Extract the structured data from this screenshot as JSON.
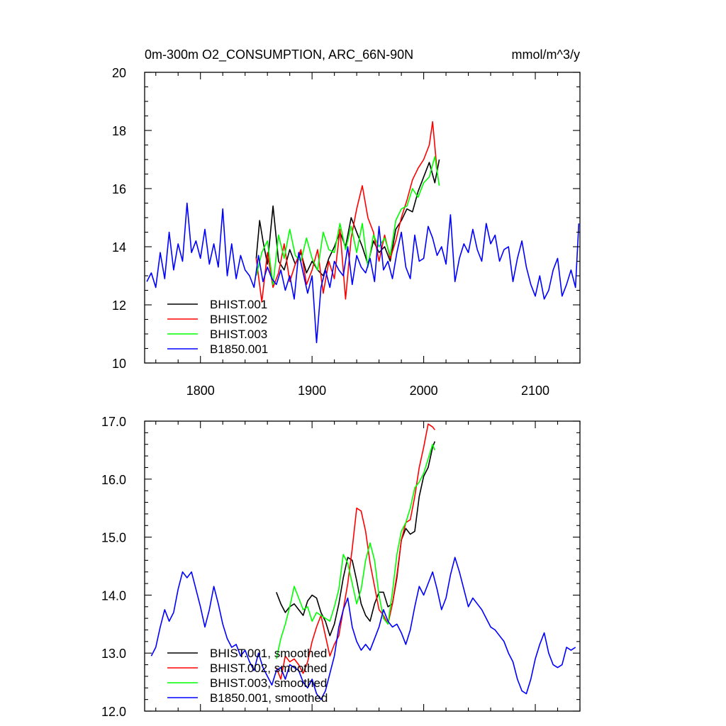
{
  "header": {
    "left": "0m-300m O2_CONSUMPTION, ARC_66N-90N",
    "right": "mmol/m^3/y"
  },
  "chart_data": [
    {
      "type": "line",
      "xlim": [
        1750,
        2140
      ],
      "ylim": [
        10,
        20
      ],
      "xticks": [
        1800,
        1900,
        2000,
        2100
      ],
      "xtick_labels": [
        "1800",
        "1900",
        "2000",
        "2100"
      ],
      "yticks": [
        10,
        12,
        14,
        16,
        18,
        20
      ],
      "ytick_labels": [
        "10",
        "12",
        "14",
        "16",
        "18",
        "20"
      ],
      "series": [
        {
          "name": "BHIST.001",
          "color": "#000000",
          "x": [
            1850,
            1853,
            1856,
            1860,
            1865,
            1870,
            1875,
            1880,
            1885,
            1890,
            1895,
            1900,
            1905,
            1910,
            1915,
            1920,
            1925,
            1930,
            1935,
            1940,
            1945,
            1950,
            1955,
            1960,
            1965,
            1970,
            1975,
            1980,
            1985,
            1990,
            1995,
            2000,
            2005,
            2010,
            2014
          ],
          "y": [
            13.6,
            14.9,
            14.2,
            13.4,
            15.4,
            13.5,
            13.2,
            13.9,
            13.4,
            13.8,
            13.1,
            13.5,
            13.2,
            13.0,
            13.6,
            14.0,
            14.5,
            14.0,
            15.0,
            14.5,
            14.0,
            13.4,
            14.2,
            13.8,
            14.0,
            13.5,
            14.6,
            14.9,
            15.3,
            15.2,
            15.9,
            16.4,
            16.9,
            16.2,
            17.0
          ]
        },
        {
          "name": "BHIST.002",
          "color": "#ff0000",
          "x": [
            1850,
            1855,
            1860,
            1865,
            1870,
            1875,
            1880,
            1885,
            1890,
            1895,
            1900,
            1905,
            1910,
            1915,
            1920,
            1925,
            1930,
            1935,
            1940,
            1945,
            1950,
            1955,
            1960,
            1965,
            1970,
            1975,
            1980,
            1985,
            1990,
            1995,
            2000,
            2005,
            2008,
            2012
          ],
          "y": [
            13.6,
            12.1,
            13.8,
            12.6,
            13.1,
            14.1,
            12.8,
            13.4,
            13.9,
            12.7,
            13.2,
            13.9,
            12.4,
            13.5,
            12.9,
            14.6,
            12.2,
            14.3,
            15.3,
            16.1,
            15.0,
            14.5,
            13.5,
            14.4,
            13.6,
            14.2,
            15.0,
            15.6,
            16.3,
            16.7,
            17.0,
            17.5,
            18.3,
            16.6
          ]
        },
        {
          "name": "BHIST.003",
          "color": "#00ff00",
          "x": [
            1850,
            1855,
            1860,
            1865,
            1870,
            1875,
            1880,
            1885,
            1890,
            1895,
            1900,
            1905,
            1910,
            1915,
            1920,
            1925,
            1930,
            1935,
            1940,
            1945,
            1950,
            1955,
            1960,
            1965,
            1970,
            1975,
            1980,
            1985,
            1990,
            1995,
            2000,
            2005,
            2010,
            2014
          ],
          "y": [
            13.0,
            13.8,
            14.2,
            12.7,
            14.4,
            13.6,
            14.6,
            13.7,
            13.5,
            14.3,
            13.6,
            13.2,
            14.5,
            13.9,
            13.8,
            14.8,
            13.9,
            14.7,
            13.8,
            14.8,
            13.3,
            14.4,
            14.0,
            14.3,
            13.7,
            14.9,
            15.3,
            15.4,
            16.0,
            15.7,
            16.2,
            16.4,
            17.1,
            16.1
          ]
        },
        {
          "name": "B1850.001",
          "color": "#0000ff",
          "x": [
            1752,
            1756,
            1760,
            1764,
            1768,
            1772,
            1776,
            1780,
            1784,
            1788,
            1792,
            1796,
            1800,
            1804,
            1808,
            1812,
            1816,
            1820,
            1824,
            1828,
            1832,
            1836,
            1840,
            1844,
            1848,
            1852,
            1856,
            1860,
            1864,
            1868,
            1872,
            1876,
            1880,
            1884,
            1888,
            1892,
            1896,
            1900,
            1904,
            1908,
            1912,
            1916,
            1920,
            1924,
            1928,
            1932,
            1936,
            1940,
            1944,
            1948,
            1952,
            1956,
            1960,
            1964,
            1968,
            1972,
            1976,
            1980,
            1984,
            1988,
            1992,
            1996,
            2000,
            2004,
            2008,
            2012,
            2016,
            2020,
            2024,
            2028,
            2032,
            2036,
            2040,
            2044,
            2048,
            2052,
            2056,
            2060,
            2064,
            2068,
            2072,
            2076,
            2080,
            2084,
            2088,
            2092,
            2096,
            2100,
            2104,
            2108,
            2112,
            2116,
            2120,
            2124,
            2128,
            2132,
            2136,
            2139
          ],
          "y": [
            12.8,
            13.1,
            12.6,
            13.8,
            12.9,
            14.5,
            13.2,
            14.1,
            13.5,
            15.5,
            13.8,
            14.2,
            13.6,
            14.6,
            13.4,
            14.1,
            13.3,
            15.3,
            13.0,
            14.1,
            12.9,
            13.7,
            13.2,
            13.0,
            12.6,
            13.7,
            12.8,
            13.3,
            12.9,
            12.7,
            13.2,
            12.5,
            13.0,
            12.2,
            13.8,
            13.1,
            12.4,
            13.0,
            10.7,
            12.6,
            13.2,
            12.6,
            13.5,
            13.2,
            13.0,
            14.0,
            12.7,
            13.7,
            13.3,
            13.1,
            13.6,
            12.8,
            14.7,
            13.2,
            13.5,
            12.9,
            13.8,
            14.5,
            13.3,
            12.9,
            14.4,
            13.5,
            13.6,
            14.7,
            14.3,
            13.7,
            14.0,
            13.4,
            15.1,
            12.8,
            13.6,
            14.1,
            13.8,
            14.6,
            13.9,
            13.5,
            14.8,
            14.1,
            14.4,
            13.5,
            13.9,
            14.0,
            12.8,
            13.6,
            14.2,
            13.3,
            12.7,
            12.3,
            13.0,
            12.2,
            12.5,
            13.2,
            13.6,
            12.3,
            12.7,
            13.2,
            12.6,
            14.8
          ]
        }
      ],
      "legend_entries": [
        "BHIST.001",
        "BHIST.002",
        "BHIST.003",
        "B1850.001"
      ],
      "legend_position": "bottom-left"
    },
    {
      "type": "line",
      "xlim": [
        1750,
        2140
      ],
      "ylim": [
        12.0,
        17.0
      ],
      "yticks": [
        12.0,
        13.0,
        14.0,
        15.0,
        16.0,
        17.0
      ],
      "ytick_labels": [
        "12.0",
        "13.0",
        "14.0",
        "15.0",
        "16.0",
        "17.0"
      ],
      "series": [
        {
          "name": "BHIST.001, smoothed",
          "color": "#000000",
          "x": [
            1868,
            1872,
            1876,
            1880,
            1884,
            1888,
            1892,
            1896,
            1900,
            1904,
            1908,
            1912,
            1916,
            1920,
            1924,
            1928,
            1932,
            1936,
            1940,
            1944,
            1948,
            1952,
            1956,
            1960,
            1964,
            1968,
            1972,
            1976,
            1980,
            1984,
            1988,
            1992,
            1996,
            2000,
            2004,
            2008,
            2010
          ],
          "y": [
            14.05,
            13.85,
            13.7,
            13.8,
            13.85,
            13.75,
            13.65,
            13.9,
            14.0,
            13.95,
            13.7,
            13.55,
            13.3,
            13.5,
            13.85,
            14.3,
            14.65,
            14.6,
            14.25,
            13.85,
            13.65,
            13.55,
            13.85,
            14.05,
            14.05,
            13.8,
            13.85,
            14.3,
            14.95,
            15.15,
            15.05,
            15.1,
            15.7,
            16.05,
            16.2,
            16.55,
            16.65
          ]
        },
        {
          "name": "BHIST.002, smoothed",
          "color": "#ff0000",
          "x": [
            1868,
            1872,
            1876,
            1880,
            1884,
            1888,
            1892,
            1896,
            1900,
            1904,
            1908,
            1912,
            1916,
            1920,
            1924,
            1928,
            1932,
            1936,
            1940,
            1944,
            1948,
            1952,
            1956,
            1960,
            1964,
            1968,
            1972,
            1976,
            1980,
            1984,
            1988,
            1992,
            1996,
            2000,
            2004,
            2008,
            2010
          ],
          "y": [
            12.75,
            12.55,
            12.95,
            12.85,
            12.9,
            12.8,
            12.65,
            12.85,
            13.2,
            13.45,
            13.65,
            13.3,
            12.95,
            13.15,
            13.3,
            13.75,
            14.2,
            14.8,
            15.5,
            15.45,
            15.1,
            14.55,
            14.15,
            13.75,
            13.65,
            13.5,
            13.85,
            14.35,
            14.95,
            15.25,
            15.3,
            15.7,
            16.2,
            16.55,
            16.95,
            16.9,
            16.85
          ]
        },
        {
          "name": "BHIST.003, smoothed",
          "color": "#00ff00",
          "x": [
            1868,
            1872,
            1876,
            1880,
            1884,
            1888,
            1892,
            1896,
            1900,
            1904,
            1908,
            1912,
            1916,
            1920,
            1924,
            1928,
            1932,
            1936,
            1940,
            1944,
            1948,
            1952,
            1956,
            1960,
            1964,
            1968,
            1972,
            1976,
            1980,
            1984,
            1988,
            1992,
            1996,
            2000,
            2004,
            2008,
            2010
          ],
          "y": [
            12.9,
            13.25,
            13.5,
            13.8,
            14.15,
            13.95,
            13.75,
            13.8,
            13.55,
            13.7,
            13.65,
            13.6,
            13.55,
            13.8,
            14.1,
            14.7,
            14.55,
            14.2,
            13.85,
            14.1,
            14.6,
            14.9,
            14.6,
            14.0,
            13.6,
            13.5,
            14.05,
            14.7,
            15.1,
            15.25,
            15.5,
            15.85,
            15.95,
            16.1,
            16.35,
            16.6,
            16.5
          ]
        },
        {
          "name": "B1850.001, smoothed",
          "color": "#0000ff",
          "x": [
            1756,
            1760,
            1764,
            1768,
            1772,
            1776,
            1780,
            1784,
            1788,
            1792,
            1796,
            1800,
            1804,
            1808,
            1812,
            1816,
            1820,
            1824,
            1828,
            1832,
            1836,
            1840,
            1844,
            1848,
            1852,
            1856,
            1860,
            1864,
            1868,
            1872,
            1876,
            1880,
            1884,
            1888,
            1892,
            1896,
            1900,
            1904,
            1908,
            1912,
            1916,
            1920,
            1924,
            1928,
            1932,
            1936,
            1940,
            1944,
            1948,
            1952,
            1956,
            1960,
            1964,
            1968,
            1972,
            1976,
            1980,
            1984,
            1988,
            1992,
            1996,
            2000,
            2004,
            2008,
            2012,
            2016,
            2020,
            2024,
            2028,
            2032,
            2036,
            2040,
            2044,
            2048,
            2052,
            2056,
            2060,
            2064,
            2068,
            2072,
            2076,
            2080,
            2084,
            2088,
            2092,
            2096,
            2100,
            2104,
            2108,
            2112,
            2116,
            2120,
            2124,
            2128,
            2132,
            2136
          ],
          "y": [
            12.95,
            13.1,
            13.45,
            13.75,
            13.55,
            13.7,
            14.1,
            14.4,
            14.3,
            14.4,
            14.1,
            13.8,
            13.45,
            13.75,
            14.15,
            13.85,
            13.5,
            13.25,
            13.1,
            13.15,
            12.95,
            13.05,
            12.85,
            12.7,
            13.0,
            12.75,
            12.6,
            12.45,
            12.7,
            12.75,
            12.55,
            12.8,
            12.75,
            12.7,
            12.5,
            12.4,
            12.55,
            12.3,
            12.2,
            12.35,
            12.65,
            12.95,
            13.45,
            13.75,
            13.95,
            13.45,
            13.2,
            13.05,
            13.15,
            13.05,
            13.25,
            13.45,
            13.75,
            13.55,
            13.45,
            13.5,
            13.35,
            13.15,
            13.4,
            13.8,
            14.15,
            14.0,
            14.2,
            14.4,
            14.1,
            13.75,
            13.95,
            14.35,
            14.65,
            14.4,
            14.1,
            13.8,
            13.95,
            13.85,
            13.75,
            13.6,
            13.45,
            13.4,
            13.3,
            13.2,
            13.0,
            12.85,
            12.55,
            12.35,
            12.3,
            12.55,
            12.9,
            13.15,
            13.35,
            13.0,
            12.8,
            12.75,
            12.8,
            13.1,
            13.05,
            13.1
          ]
        }
      ],
      "legend_entries": [
        "BHIST.001, smoothed",
        "BHIST.002, smoothed",
        "BHIST.003, smoothed",
        "B1850.001, smoothed"
      ],
      "legend_position": "bottom-left"
    }
  ]
}
